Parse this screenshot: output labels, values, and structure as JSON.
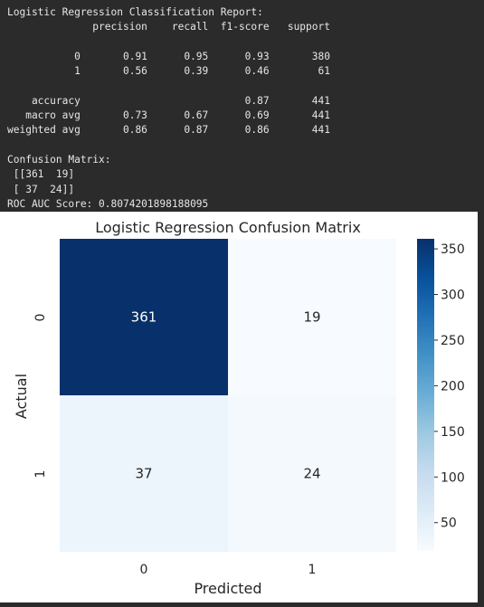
{
  "console": {
    "lines": [
      "Logistic Regression Classification Report:",
      "              precision    recall  f1-score   support",
      "",
      "           0       0.91      0.95      0.93       380",
      "           1       0.56      0.39      0.46        61",
      "",
      "    accuracy                           0.87       441",
      "   macro avg       0.73      0.67      0.69       441",
      "weighted avg       0.86      0.87      0.86       441",
      "",
      "Confusion Matrix:",
      " [[361  19]",
      " [ 37  24]]",
      "ROC AUC Score: 0.8074201898188095"
    ]
  },
  "chart_data": {
    "type": "heatmap",
    "title": "Logistic Regression Confusion Matrix",
    "xlabel": "Predicted",
    "ylabel": "Actual",
    "x_tick_labels": [
      "0",
      "1"
    ],
    "y_tick_labels": [
      "0",
      "1"
    ],
    "matrix": [
      [
        361,
        19
      ],
      [
        37,
        24
      ]
    ],
    "colormap": "Blues",
    "colorbar_ticks": [
      "350",
      "300",
      "250",
      "200",
      "150",
      "100",
      "50"
    ],
    "colorbar_range": [
      19,
      361
    ],
    "colors": {
      "low": "#f7fbff",
      "high": "#08306b",
      "dark_text": "#262626",
      "light_text": "#ffffff"
    }
  }
}
